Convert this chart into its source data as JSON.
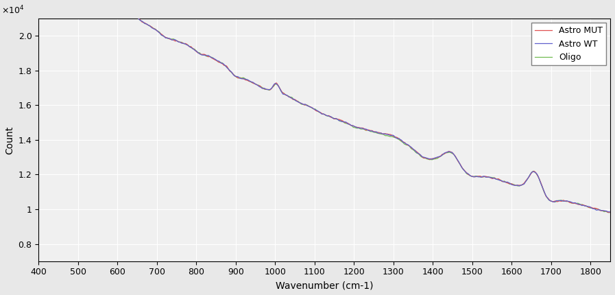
{
  "title": "",
  "xlabel": "Wavenumber (cm-1)",
  "ylabel": "Count",
  "ylim": [
    7000,
    21000
  ],
  "xlim": [
    400,
    1850
  ],
  "ytick_values": [
    0.8,
    1.0,
    1.2,
    1.4,
    1.6,
    1.8,
    2.0
  ],
  "xtick_values": [
    400,
    500,
    600,
    700,
    800,
    900,
    1000,
    1100,
    1200,
    1300,
    1400,
    1500,
    1600,
    1700,
    1800
  ],
  "legend_labels": [
    "Astro MUT",
    "Astro WT",
    "Oligo"
  ],
  "line_colors": [
    "#e05050",
    "#6060cc",
    "#70bb50"
  ],
  "background_color": "#f0f0f0",
  "grid_color": "#ffffff",
  "figsize": [
    8.97,
    4.3
  ],
  "dpi": 100
}
